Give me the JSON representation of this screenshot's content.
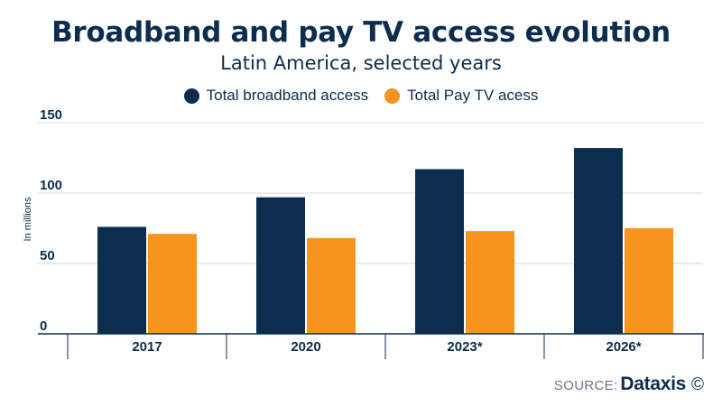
{
  "header": {
    "title": "Broadband and pay TV access evolution",
    "subtitle": "Latin America, selected years"
  },
  "source": {
    "label": "SOURCE:",
    "brand": "Dataxis",
    "symbol": "©"
  },
  "colors": {
    "broadband": "#0c2d4e",
    "paytv": "#f7941d",
    "text": "#0c2d4e",
    "grid": "#d5d9de"
  },
  "chart_data": {
    "type": "bar",
    "categories": [
      "2017",
      "2020",
      "2023*",
      "2026*"
    ],
    "series": [
      {
        "name": "Total broadband access",
        "values": [
          76,
          97,
          117,
          132
        ]
      },
      {
        "name": "Total Pay TV acess",
        "values": [
          71,
          68,
          73,
          75
        ]
      }
    ],
    "ylabel": "In millions",
    "ylim": [
      0,
      150
    ],
    "yticks": [
      0,
      50,
      100,
      150
    ],
    "grid": true,
    "legend": "top-center"
  }
}
